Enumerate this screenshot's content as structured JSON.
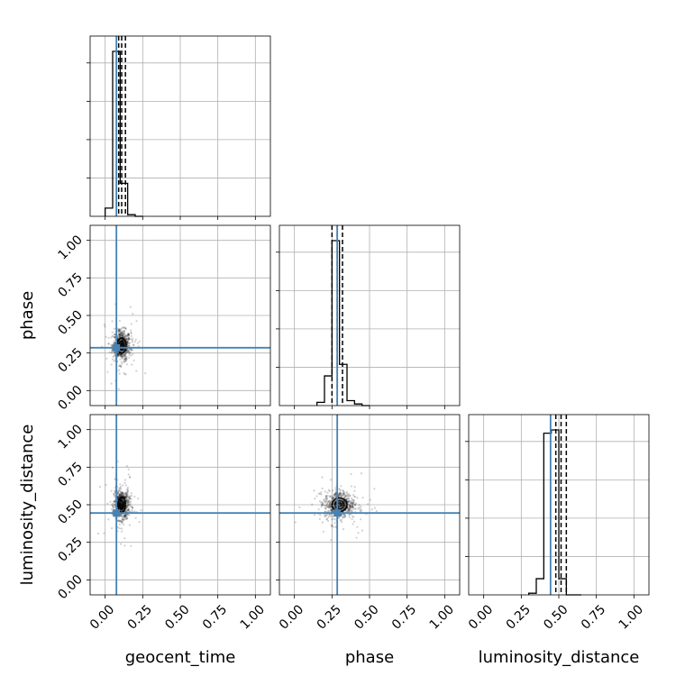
{
  "chart_data": {
    "type": "corner",
    "parameters": [
      "geocent_time",
      "phase",
      "luminosity_distance"
    ],
    "axis_labels": {
      "x": [
        "geocent_time",
        "phase",
        "luminosity_distance"
      ],
      "y": [
        "",
        "phase",
        "luminosity_distance"
      ]
    },
    "range": [
      -0.1,
      1.1
    ],
    "ticks": [
      0.0,
      0.25,
      0.5,
      0.75,
      1.0
    ],
    "tick_labels": [
      "0.00",
      "0.25",
      "0.50",
      "0.75",
      "1.00"
    ],
    "grid": true,
    "injection": {
      "geocent_time": 0.075,
      "phase": 0.285,
      "luminosity_distance": 0.445
    },
    "injection_color": "#4682b4",
    "histograms": {
      "geocent_time": {
        "bin_edges": [
          0.0,
          0.05,
          0.1,
          0.15,
          0.2,
          0.25
        ],
        "counts": [
          0.05,
          1.0,
          0.2,
          0.01,
          0.0
        ],
        "quantiles": [
          0.09,
          0.11,
          0.135
        ]
      },
      "phase": {
        "bin_edges": [
          0.15,
          0.2,
          0.25,
          0.3,
          0.35,
          0.4,
          0.45,
          0.5
        ],
        "counts": [
          0.02,
          0.18,
          1.0,
          0.25,
          0.03,
          0.01,
          0.0
        ],
        "quantiles": [
          0.25,
          0.285,
          0.32
        ]
      },
      "luminosity_distance": {
        "bin_edges": [
          0.3,
          0.35,
          0.4,
          0.45,
          0.5,
          0.55,
          0.6,
          0.65
        ],
        "counts": [
          0.01,
          0.1,
          1.0,
          1.02,
          0.1,
          0.0,
          0.0
        ],
        "quantiles": [
          0.48,
          0.515,
          0.55
        ]
      }
    },
    "samples_2d": [
      {
        "x": "geocent_time",
        "y": "phase",
        "center": [
          0.11,
          0.3
        ],
        "spread": [
          0.03,
          0.05
        ]
      },
      {
        "x": "geocent_time",
        "y": "luminosity_distance",
        "center": [
          0.11,
          0.5
        ],
        "spread": [
          0.025,
          0.05
        ]
      },
      {
        "x": "phase",
        "y": "luminosity_distance",
        "center": [
          0.3,
          0.5
        ],
        "spread": [
          0.05,
          0.045
        ]
      }
    ]
  }
}
